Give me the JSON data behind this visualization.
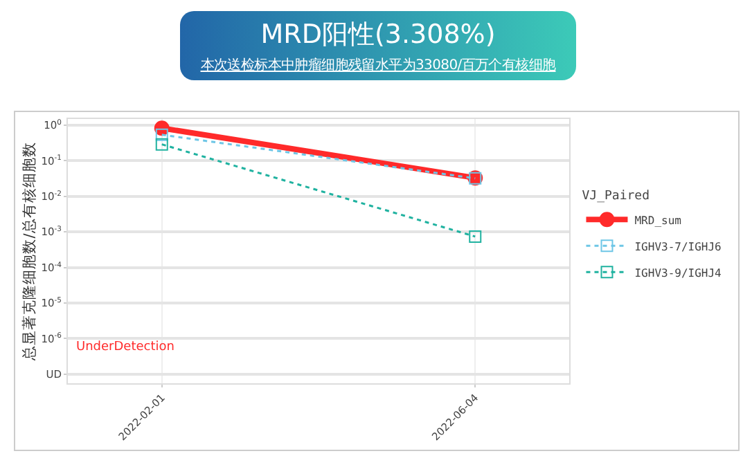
{
  "chart_data": {
    "type": "line",
    "title": "MRD阳性(3.308%)",
    "subtitle": "本次送检标本中肿瘤细胞残留水平为33080/百万个有核细胞",
    "ylabel": "总显著克隆细胞数/总有核细胞数",
    "legend_title": "VJ_Paired",
    "categories": [
      "2022-02-01",
      "2022-06-04"
    ],
    "series": [
      {
        "name": "MRD_sum",
        "color": "#ff2a2a",
        "values": [
          0.83,
          0.033
        ],
        "marker": "circle",
        "line_style": "solid"
      },
      {
        "name": "IGHV3-7/IGHJ6",
        "color": "#6ec6e6",
        "values": [
          0.54,
          0.032
        ],
        "marker": "square",
        "line_style": "dotted"
      },
      {
        "name": "IGHV3-9/IGHJ4",
        "color": "#20b2a0",
        "values": [
          0.29,
          0.00074
        ],
        "marker": "square",
        "line_style": "dotted"
      }
    ],
    "log": true,
    "ylim": [
      5.5e-08,
      1.5
    ],
    "yticks": [
      {
        "value": 1,
        "label": "10$^{0}$"
      },
      {
        "value": 0.1,
        "label": "10$^{-1}$"
      },
      {
        "value": 0.01,
        "label": "10$^{-2}$"
      },
      {
        "value": 0.001,
        "label": "10$^{-3}$"
      },
      {
        "value": 0.0001,
        "label": "10$^{-4}$"
      },
      {
        "value": 1e-05,
        "label": "10$^{-5}$"
      },
      {
        "value": 1e-06,
        "label": "10$^{-6}$"
      },
      {
        "value": 1e-07,
        "label": "UD"
      }
    ],
    "annotations": [
      "UnderDetection"
    ],
    "grid": true,
    "legend": "right"
  }
}
